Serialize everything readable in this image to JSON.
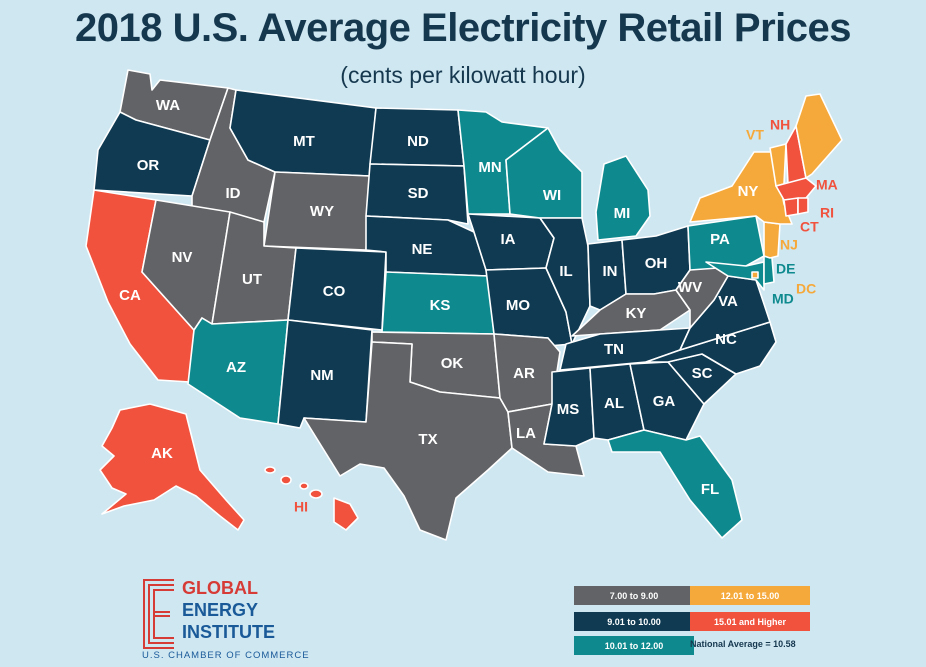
{
  "title": "2018 U.S. Average Electricity Retail Prices",
  "subtitle": "(cents per kilowatt hour)",
  "colors": {
    "background": "#cfe7f1",
    "range_7_9": "#626366",
    "range_9_10": "#0f3a52",
    "range_10_12": "#0e8a8e",
    "range_12_15": "#f6a93b",
    "range_15_up": "#f0523e"
  },
  "states": {
    "WA": "range_7_9",
    "OR": "range_9_10",
    "CA": "range_15_up",
    "ID": "range_7_9",
    "NV": "range_7_9",
    "MT": "range_9_10",
    "WY": "range_7_9",
    "UT": "range_7_9",
    "AZ": "range_10_12",
    "CO": "range_9_10",
    "NM": "range_9_10",
    "ND": "range_9_10",
    "SD": "range_9_10",
    "NE": "range_9_10",
    "KS": "range_10_12",
    "OK": "range_7_9",
    "TX": "range_7_9",
    "MN": "range_10_12",
    "IA": "range_9_10",
    "MO": "range_9_10",
    "AR": "range_7_9",
    "LA": "range_7_9",
    "WI": "range_10_12",
    "IL": "range_9_10",
    "MI": "range_10_12",
    "IN": "range_9_10",
    "OH": "range_9_10",
    "KY": "range_7_9",
    "TN": "range_9_10",
    "MS": "range_9_10",
    "AL": "range_9_10",
    "GA": "range_9_10",
    "FL": "range_10_12",
    "SC": "range_9_10",
    "NC": "range_9_10",
    "VA": "range_9_10",
    "WV": "range_7_9",
    "PA": "range_10_12",
    "NY": "range_12_15",
    "VT": "range_12_15",
    "NH": "range_15_up",
    "ME": "range_12_15",
    "MA": "range_15_up",
    "RI": "range_15_up",
    "CT": "range_15_up",
    "NJ": "range_12_15",
    "DE": "range_10_12",
    "MD": "range_10_12",
    "DC": "range_12_15",
    "AK": "range_15_up",
    "HI": "range_15_up"
  },
  "legend": {
    "range_7_9": "7.00 to 9.00",
    "range_9_10": "9.01 to 10.00",
    "range_10_12": "10.01 to 12.00",
    "range_12_15": "12.01 to 15.00",
    "range_15_up": "15.01 and Higher",
    "national_average": "National Average = 10.58"
  },
  "logo": {
    "line1": "GLOBAL",
    "line2": "ENERGY",
    "line3": "INSTITUTE",
    "subline": "U.S. CHAMBER OF COMMERCE"
  }
}
